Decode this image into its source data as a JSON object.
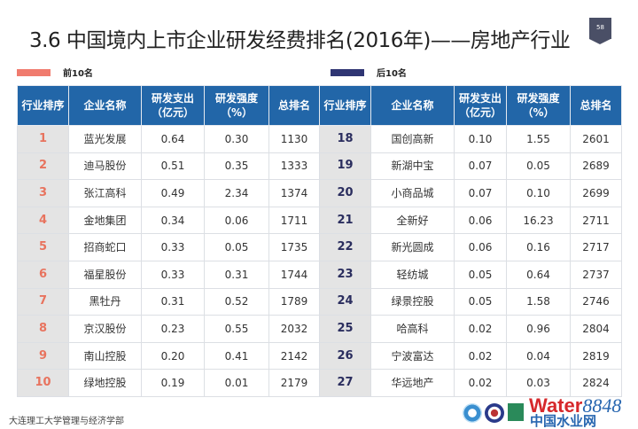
{
  "title": "3.6  中国境内上市企业研发经费排名(2016年)——房地产行业",
  "page_number": "58",
  "legend": [
    {
      "label": "前10名",
      "color": "#f07b6e"
    },
    {
      "label": "后10名",
      "color": "#2f3573"
    }
  ],
  "header_lines": [
    [
      "行业排序"
    ],
    [
      "企业名称"
    ],
    [
      "研发支出",
      "（亿元）"
    ],
    [
      "研发强度",
      "（%）"
    ],
    [
      "总排名"
    ]
  ],
  "top10": [
    [
      "1",
      "蓝光发展",
      "0.64",
      "0.30",
      "1130"
    ],
    [
      "2",
      "迪马股份",
      "0.51",
      "0.35",
      "1333"
    ],
    [
      "3",
      "张江高科",
      "0.49",
      "2.34",
      "1374"
    ],
    [
      "4",
      "金地集团",
      "0.34",
      "0.06",
      "1711"
    ],
    [
      "5",
      "招商蛇口",
      "0.33",
      "0.05",
      "1735"
    ],
    [
      "6",
      "福星股份",
      "0.33",
      "0.31",
      "1744"
    ],
    [
      "7",
      "黑牡丹",
      "0.31",
      "0.52",
      "1789"
    ],
    [
      "8",
      "京汉股份",
      "0.23",
      "0.55",
      "2032"
    ],
    [
      "9",
      "南山控股",
      "0.20",
      "0.41",
      "2142"
    ],
    [
      "10",
      "绿地控股",
      "0.19",
      "0.01",
      "2179"
    ]
  ],
  "bottom10": [
    [
      "18",
      "国创高新",
      "0.10",
      "1.55",
      "2601"
    ],
    [
      "19",
      "新湖中宝",
      "0.07",
      "0.05",
      "2689"
    ],
    [
      "20",
      "小商品城",
      "0.07",
      "0.10",
      "2699"
    ],
    [
      "21",
      "全新好",
      "0.06",
      "16.23",
      "2711"
    ],
    [
      "22",
      "新光圆成",
      "0.06",
      "0.16",
      "2717"
    ],
    [
      "23",
      "轻纺城",
      "0.05",
      "0.64",
      "2737"
    ],
    [
      "24",
      "绿景控股",
      "0.05",
      "1.58",
      "2746"
    ],
    [
      "25",
      "哈高科",
      "0.02",
      "0.96",
      "2804"
    ],
    [
      "26",
      "宁波富达",
      "0.02",
      "0.04",
      "2819"
    ],
    [
      "27",
      "华远地产",
      "0.02",
      "0.03",
      "2824"
    ]
  ],
  "footer": "大连理工大学管理与经济学部",
  "watermark": {
    "brand": "Water",
    "num": "8848",
    "sub": "中国水业网"
  }
}
